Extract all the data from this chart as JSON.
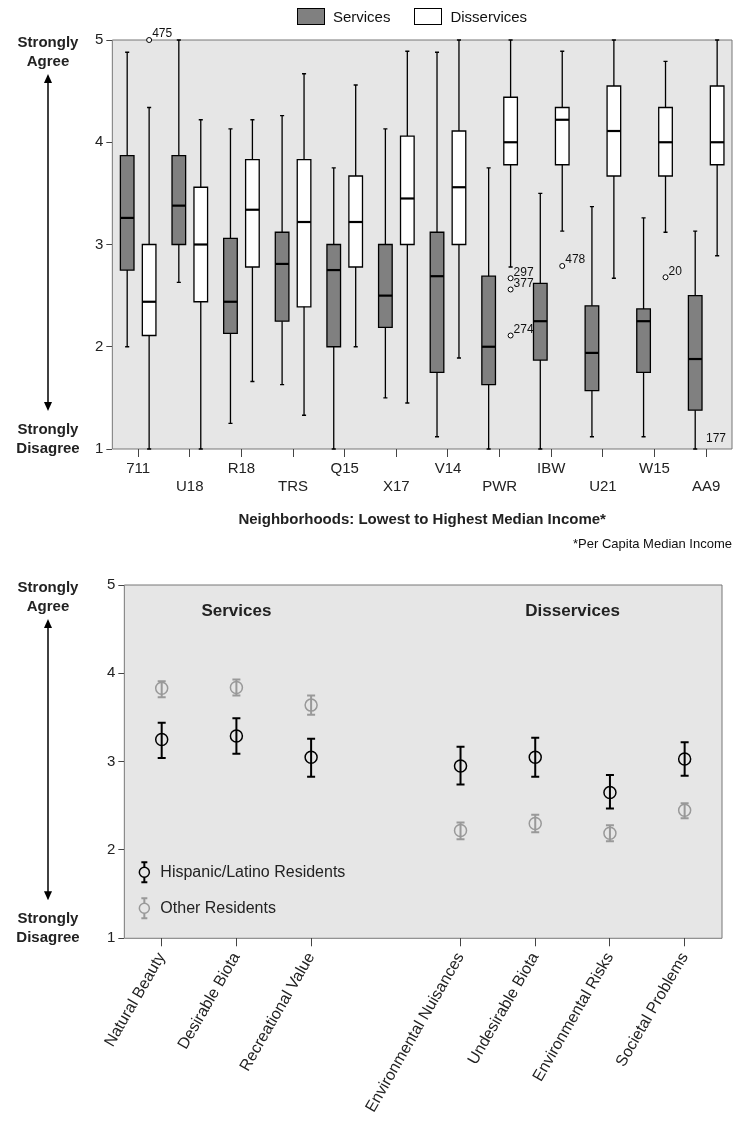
{
  "chart_data": [
    {
      "type": "box",
      "xlabel": "Neighborhoods: Lowest to Highest Median Income*",
      "categories": [
        "711",
        "U18",
        "R18",
        "TRS",
        "Q15",
        "X17",
        "V14",
        "PWR",
        "IBW",
        "U21",
        "W15",
        "AA9"
      ],
      "legend": "top",
      "ylim": [
        1,
        5
      ],
      "yticks": [
        1,
        2,
        3,
        4,
        5
      ],
      "series": [
        {
          "name": "Services",
          "color": "#808080",
          "boxes": [
            {
              "low": 2.0,
              "q1": 2.75,
              "median": 3.26,
              "q3": 3.87,
              "high": 4.88
            },
            {
              "low": 2.63,
              "q1": 3.0,
              "median": 3.38,
              "q3": 3.87,
              "high": 5.0
            },
            {
              "low": 1.25,
              "q1": 2.13,
              "median": 2.44,
              "q3": 3.06,
              "high": 4.13
            },
            {
              "low": 1.63,
              "q1": 2.25,
              "median": 2.81,
              "q3": 3.12,
              "high": 4.26
            },
            {
              "low": 1.0,
              "q1": 2.0,
              "median": 2.75,
              "q3": 3.0,
              "high": 3.75
            },
            {
              "low": 1.5,
              "q1": 2.19,
              "median": 2.5,
              "q3": 3.0,
              "high": 4.13
            },
            {
              "low": 1.12,
              "q1": 1.75,
              "median": 2.69,
              "q3": 3.12,
              "high": 4.88
            },
            {
              "low": 1.0,
              "q1": 1.63,
              "median": 2.0,
              "q3": 2.69,
              "high": 3.75
            },
            {
              "low": 1.0,
              "q1": 1.87,
              "median": 2.25,
              "q3": 2.62,
              "high": 3.5
            },
            {
              "low": 1.12,
              "q1": 1.57,
              "median": 1.94,
              "q3": 2.4,
              "high": 3.37
            },
            {
              "low": 1.12,
              "q1": 1.75,
              "median": 2.25,
              "q3": 2.37,
              "high": 3.26
            },
            {
              "low": 1.0,
              "q1": 1.38,
              "median": 1.88,
              "q3": 2.5,
              "high": 3.13
            }
          ]
        },
        {
          "name": "Disservices",
          "color": "#ffffff",
          "boxes": [
            {
              "low": 1.0,
              "q1": 2.11,
              "median": 2.44,
              "q3": 3.0,
              "high": 4.34,
              "outliers": [
                5.0
              ]
            },
            {
              "low": 1.0,
              "q1": 2.44,
              "median": 3.0,
              "q3": 3.56,
              "high": 4.22
            },
            {
              "low": 1.66,
              "q1": 2.78,
              "median": 3.34,
              "q3": 3.83,
              "high": 4.22
            },
            {
              "low": 1.33,
              "q1": 2.39,
              "median": 3.22,
              "q3": 3.83,
              "high": 4.67
            },
            {
              "low": 2.0,
              "q1": 2.78,
              "median": 3.22,
              "q3": 3.67,
              "high": 4.56
            },
            {
              "low": 1.45,
              "q1": 3.0,
              "median": 3.45,
              "q3": 4.06,
              "high": 4.89
            },
            {
              "low": 1.89,
              "q1": 3.0,
              "median": 3.56,
              "q3": 4.11,
              "high": 5.0
            },
            {
              "low": 2.78,
              "q1": 3.78,
              "median": 4.0,
              "q3": 4.44,
              "high": 5.0,
              "outliers": [
                2.67,
                2.56,
                2.11
              ]
            },
            {
              "low": 3.13,
              "q1": 3.78,
              "median": 4.22,
              "q3": 4.34,
              "high": 4.89,
              "outliers": [
                2.79
              ]
            },
            {
              "low": 2.67,
              "q1": 3.67,
              "median": 4.11,
              "q3": 4.55,
              "high": 5.0
            },
            {
              "low": 3.12,
              "q1": 3.67,
              "median": 4.0,
              "q3": 4.34,
              "high": 4.79,
              "outliers": [
                2.68
              ]
            },
            {
              "low": 2.89,
              "q1": 3.78,
              "median": 4.0,
              "q3": 4.55,
              "high": 5.0
            }
          ]
        }
      ],
      "annotations": [
        "Strongly Agree",
        "Strongly Disagree",
        "475",
        "297",
        "377",
        "274",
        "478",
        "20",
        "177",
        "*Per Capita Median Income"
      ]
    },
    {
      "type": "scatter",
      "categories": [
        "Natural Beauty",
        "Desirable Biota",
        "Recreational Value",
        null,
        "Environmental Nuisances",
        "Undesirable Biota",
        "Environmental Risks",
        "Societal Problems"
      ],
      "ylim": [
        1,
        5
      ],
      "yticks": [
        1,
        2,
        3,
        4,
        5
      ],
      "marker": "circle",
      "legend": "bottom left",
      "series": [
        {
          "name": "Hispanic/Latino Residents",
          "color": "#000000",
          "values": [
            3.25,
            3.29,
            3.05,
            null,
            2.95,
            3.05,
            2.65,
            3.03
          ],
          "errors": [
            [
              3.04,
              3.44
            ],
            [
              3.09,
              3.49
            ],
            [
              2.83,
              3.26
            ],
            null,
            [
              2.74,
              3.17
            ],
            [
              2.83,
              3.27
            ],
            [
              2.47,
              2.85
            ],
            [
              2.84,
              3.22
            ]
          ]
        },
        {
          "name": "Other Residents",
          "color": "#999999",
          "values": [
            3.83,
            3.84,
            3.64,
            null,
            2.22,
            2.3,
            2.19,
            2.45
          ],
          "errors": [
            [
              3.73,
              3.91
            ],
            [
              3.75,
              3.93
            ],
            [
              3.53,
              3.75
            ],
            null,
            [
              2.12,
              2.31
            ],
            [
              2.2,
              2.4
            ],
            [
              2.1,
              2.28
            ],
            [
              2.36,
              2.53
            ]
          ]
        }
      ],
      "annotations": [
        "Strongly Agree",
        "Strongly Disagree",
        "Services",
        "Disservices"
      ]
    }
  ]
}
